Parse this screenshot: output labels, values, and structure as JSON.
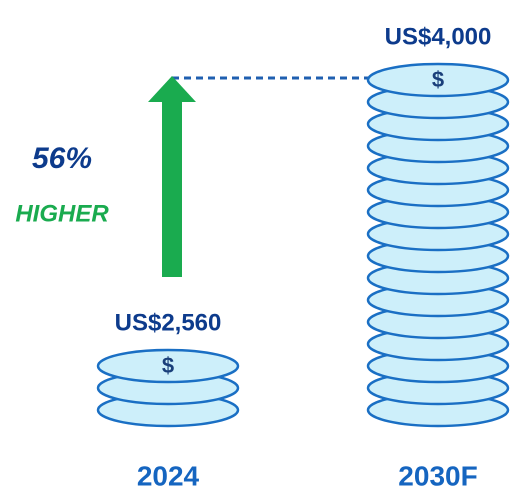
{
  "chart_data": {
    "type": "coin-stack",
    "categories": [
      "2024",
      "2030F"
    ],
    "values": [
      2560,
      4000
    ],
    "value_labels": [
      "US$2,560",
      "US$4,000"
    ],
    "coin_symbol": "$",
    "annotation": "56%",
    "annotation_sub": "HIGHER",
    "color": "#cdeffa"
  }
}
